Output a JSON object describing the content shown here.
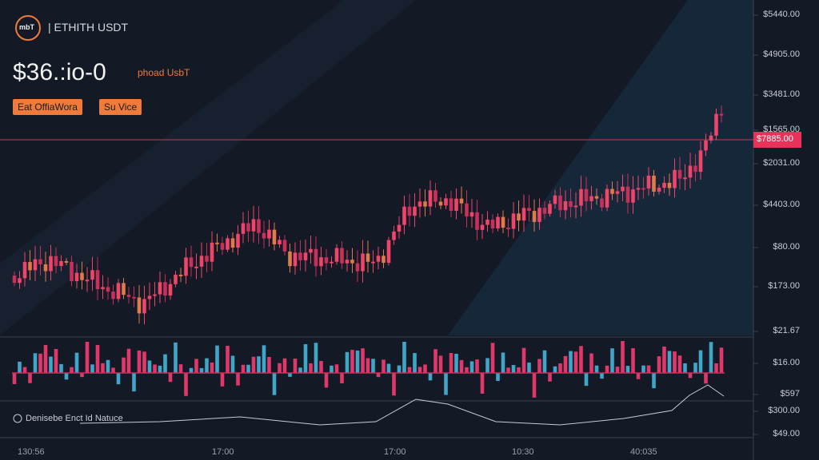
{
  "header": {
    "logo": "mbT",
    "pair": "| ETHITH USDT",
    "price": "$36.:io-0",
    "price_unit": "phoad UsbT",
    "buttons": [
      "Eat OffiaWora",
      "Su Vice"
    ]
  },
  "price_tag": "$7885.00",
  "price_axis": [
    "$5440.00",
    "$4905.00",
    "$3481.00",
    "$1565.00",
    "$2031.00",
    "$4403.00",
    "$80.00",
    "$173.00",
    "$21.67",
    "$16.00",
    "$597",
    "$300.00",
    "$49.00"
  ],
  "indicator_legend": "Denisebe Enct Id Natuce",
  "time_axis": [
    "130:56",
    "17:00",
    "17:00",
    "10:30",
    "40:035"
  ]
}
